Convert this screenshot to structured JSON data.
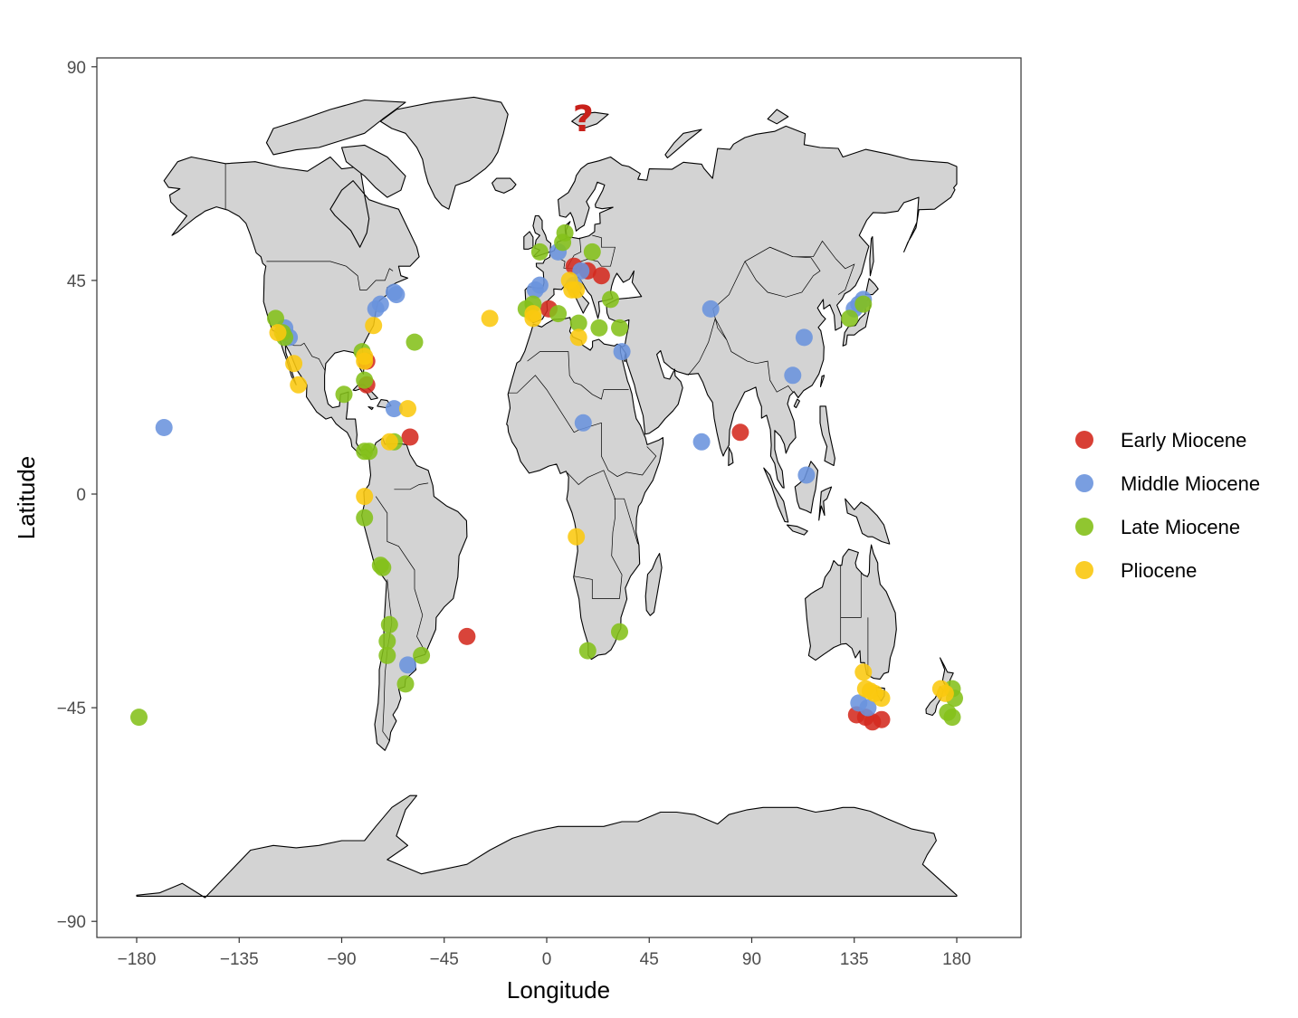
{
  "chart_data": {
    "type": "scatter",
    "subtype": "world map with fossil locality points",
    "title": "",
    "xlabel": "Longitude",
    "ylabel": "Latitude",
    "xlim": [
      -190,
      190
    ],
    "ylim": [
      -92,
      90
    ],
    "x_ticks": [
      -180,
      -135,
      -90,
      -45,
      0,
      45,
      90,
      135,
      180
    ],
    "x_tick_labels": [
      "−180",
      "−135",
      "−90",
      "−45",
      "0",
      "45",
      "90",
      "135",
      "180"
    ],
    "y_ticks": [
      -90,
      -45,
      0,
      45,
      90
    ],
    "y_tick_labels": [
      "−90",
      "−45",
      "0",
      "45",
      "90"
    ],
    "grid": false,
    "legend_position": "right",
    "annotation": {
      "text": "?",
      "lon": 16,
      "lat": 78,
      "color": "#c8201a"
    },
    "series": [
      {
        "name": "Early Miocene",
        "color": "#d42a1f",
        "points": [
          [
            -79,
            28
          ],
          [
            -79,
            23
          ],
          [
            -60,
            12
          ],
          [
            1,
            39
          ],
          [
            12,
            48
          ],
          [
            18,
            47
          ],
          [
            24,
            46
          ],
          [
            -35,
            -30
          ],
          [
            85,
            13
          ],
          [
            136,
            -46.5
          ],
          [
            140,
            -47
          ],
          [
            143,
            -48
          ],
          [
            147,
            -47.5
          ]
        ]
      },
      {
        "name": "Middle Miocene",
        "color": "#6a93dd",
        "points": [
          [
            -168,
            14
          ],
          [
            -115,
            35
          ],
          [
            -113,
            33
          ],
          [
            -75,
            39
          ],
          [
            -73,
            40
          ],
          [
            -67,
            42.5
          ],
          [
            -66,
            42
          ],
          [
            -67,
            18
          ],
          [
            -5,
            43
          ],
          [
            -3,
            44
          ],
          [
            5,
            51
          ],
          [
            15,
            47
          ],
          [
            12,
            44
          ],
          [
            33,
            30
          ],
          [
            16,
            15
          ],
          [
            72,
            39
          ],
          [
            68,
            11
          ],
          [
            113,
            33
          ],
          [
            108,
            25
          ],
          [
            114,
            4
          ],
          [
            135,
            39
          ],
          [
            137,
            40
          ],
          [
            139,
            41
          ],
          [
            -61,
            -36
          ],
          [
            137,
            -44
          ],
          [
            141,
            -45
          ]
        ]
      },
      {
        "name": "Late Miocene",
        "color": "#84c01a",
        "points": [
          [
            -119,
            37
          ],
          [
            -116,
            34
          ],
          [
            -115,
            33
          ],
          [
            -58,
            32
          ],
          [
            -81,
            30
          ],
          [
            -80,
            24
          ],
          [
            -89,
            21
          ],
          [
            -80,
            9
          ],
          [
            -78,
            9
          ],
          [
            -67,
            11
          ],
          [
            -80,
            -5
          ],
          [
            -73,
            -15
          ],
          [
            -72,
            -15.5
          ],
          [
            -69,
            -27.5
          ],
          [
            -70,
            -31
          ],
          [
            -70,
            -34
          ],
          [
            -55,
            -34
          ],
          [
            -62,
            -40
          ],
          [
            -179,
            -47
          ],
          [
            -3,
            51
          ],
          [
            8,
            55
          ],
          [
            7,
            53
          ],
          [
            20,
            51
          ],
          [
            -9,
            39
          ],
          [
            -6,
            40
          ],
          [
            5,
            38
          ],
          [
            14,
            36
          ],
          [
            23,
            35
          ],
          [
            32,
            35
          ],
          [
            28,
            41
          ],
          [
            18,
            -33
          ],
          [
            32,
            -29
          ],
          [
            133,
            37
          ],
          [
            139,
            40
          ],
          [
            178,
            -41
          ],
          [
            179,
            -43
          ],
          [
            176,
            -46
          ],
          [
            178,
            -47
          ]
        ]
      },
      {
        "name": "Pliocene",
        "color": "#fac80f",
        "points": [
          [
            -118,
            34
          ],
          [
            -111,
            27.5
          ],
          [
            -109,
            23
          ],
          [
            -80,
            29
          ],
          [
            -80,
            28
          ],
          [
            -76,
            35.5
          ],
          [
            -61,
            18
          ],
          [
            -69,
            11
          ],
          [
            -80,
            -0.5
          ],
          [
            -25,
            37
          ],
          [
            -6,
            38
          ],
          [
            -6,
            37
          ],
          [
            10,
            45
          ],
          [
            11,
            43
          ],
          [
            13,
            43
          ],
          [
            14,
            33
          ],
          [
            13,
            -9
          ],
          [
            139,
            -37.5
          ],
          [
            140,
            -41
          ],
          [
            142,
            -41.5
          ],
          [
            144,
            -42
          ],
          [
            147,
            -43
          ],
          [
            173,
            -41
          ],
          [
            175,
            -42
          ]
        ]
      }
    ]
  },
  "legend": {
    "items": [
      {
        "label": "Early Miocene",
        "color": "#d42a1f"
      },
      {
        "label": "Middle Miocene",
        "color": "#6a93dd"
      },
      {
        "label": "Late Miocene",
        "color": "#84c01a"
      },
      {
        "label": "Pliocene",
        "color": "#fac80f"
      }
    ]
  }
}
